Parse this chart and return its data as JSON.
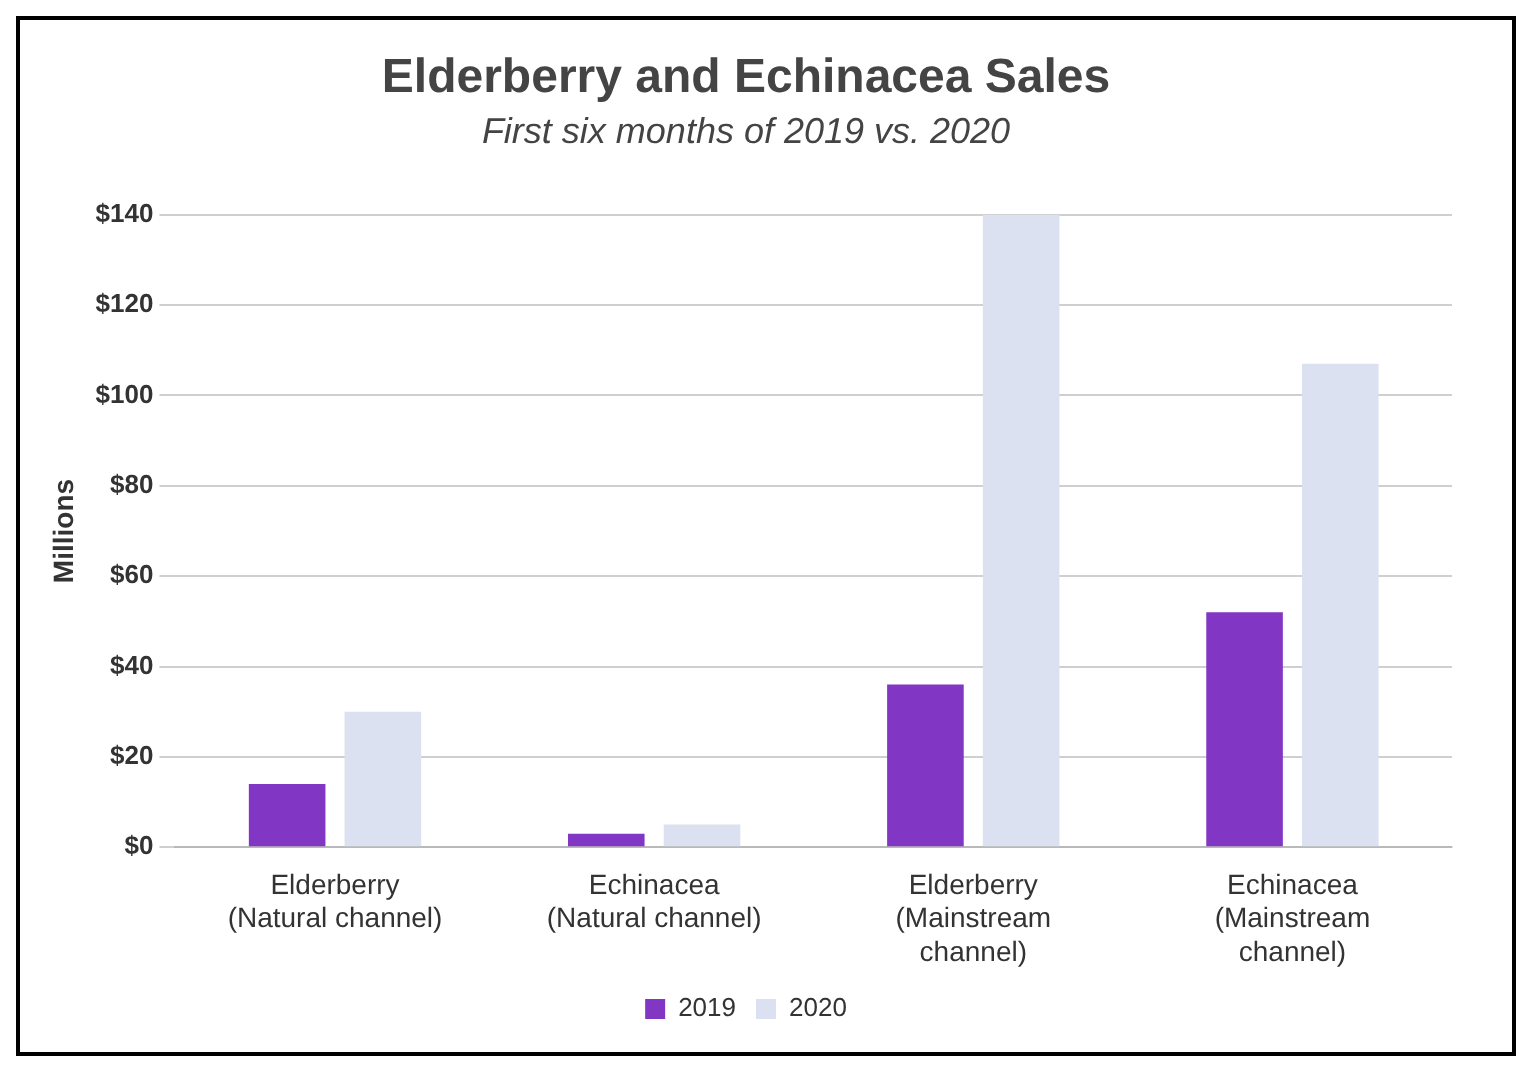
{
  "chart_data": {
    "type": "bar",
    "title": "Elderberry and Echinacea Sales",
    "subtitle": "First six months of 2019 vs. 2020",
    "ylabel": "Millions",
    "categories": [
      "Elderberry\n(Natural channel)",
      "Echinacea\n(Natural channel)",
      "Elderberry\n(Mainstream\nchannel)",
      "Echinacea\n(Mainstream\nchannel)"
    ],
    "series": [
      {
        "name": "2019",
        "color": "#8236c4",
        "values": [
          14,
          3,
          36,
          52
        ]
      },
      {
        "name": "2020",
        "color": "#dbe1f0",
        "values": [
          30,
          5,
          140,
          107
        ]
      }
    ],
    "ylim": [
      0,
      140
    ],
    "yticks": [
      {
        "value": 0,
        "label": "$0"
      },
      {
        "value": 20,
        "label": "$20"
      },
      {
        "value": 40,
        "label": "$40"
      },
      {
        "value": 60,
        "label": "$60"
      },
      {
        "value": 80,
        "label": "$80"
      },
      {
        "value": 100,
        "label": "$100"
      },
      {
        "value": 120,
        "label": "$120"
      },
      {
        "value": 140,
        "label": "$140"
      }
    ],
    "grid": "y",
    "legend": "bottom"
  }
}
